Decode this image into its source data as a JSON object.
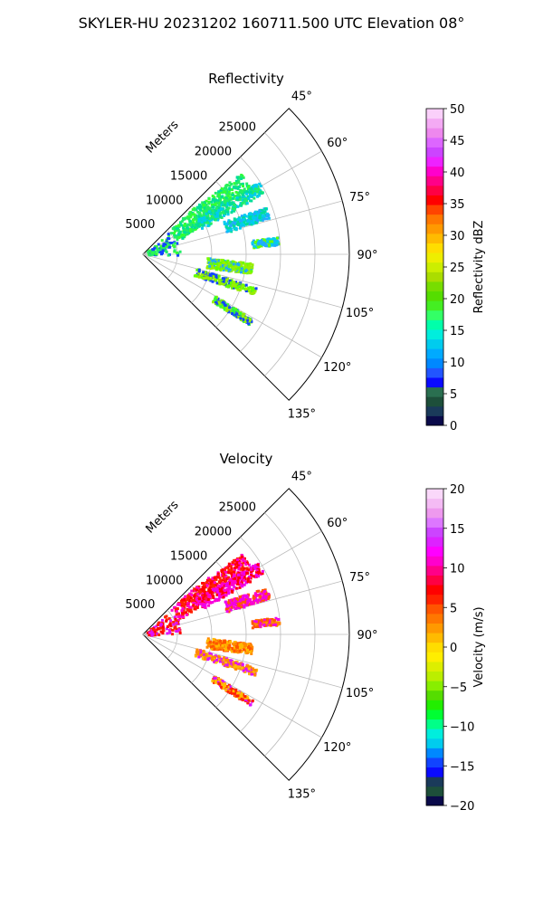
{
  "title": "SKYLER-HU  20231202  160711.500 UTC Elevation 08°",
  "chart_data": [
    {
      "type": "polar-sector",
      "title": "Reflectivity",
      "radial_label": "Meters",
      "azimuth_range_deg": [
        45,
        135
      ],
      "azimuth_ticks": [
        "45°",
        "60°",
        "75°",
        "90°",
        "105°",
        "120°",
        "135°"
      ],
      "range_max_m": 27000,
      "range_ticks": [
        "5000",
        "10000",
        "15000",
        "20000",
        "25000"
      ],
      "colorbar": {
        "label": "Reflectivity dBZ",
        "range": [
          0,
          50
        ],
        "ticks": [
          "0",
          "5",
          "10",
          "15",
          "20",
          "25",
          "30",
          "35",
          "40",
          "45",
          "50"
        ],
        "colors": [
          "#0a0a4a",
          "#1a3a5a",
          "#1d4f3a",
          "#2a6f50",
          "#0a0aff",
          "#2255ff",
          "#0088ff",
          "#00aaff",
          "#00ccee",
          "#00eedd",
          "#00ffaa",
          "#33ff66",
          "#44ee22",
          "#55dd00",
          "#77dd00",
          "#aadd00",
          "#ccee00",
          "#eeee00",
          "#ffdd00",
          "#ffbb00",
          "#ff9900",
          "#ff7700",
          "#ff4400",
          "#ff0000",
          "#ff0044",
          "#ff0088",
          "#ff00cc",
          "#ee22ff",
          "#cc44ff",
          "#dd66ff",
          "#ee88ee",
          "#f4aaf4",
          "#fad0fa"
        ]
      },
      "echo_colors": [
        "#33ff33",
        "#22ee66",
        "#00dd99",
        "#00ccee",
        "#22aaff",
        "#66ff00",
        "#99ee00",
        "#1144ff"
      ]
    },
    {
      "type": "polar-sector",
      "title": "Velocity",
      "radial_label": "Meters",
      "azimuth_range_deg": [
        45,
        135
      ],
      "azimuth_ticks": [
        "45°",
        "60°",
        "75°",
        "90°",
        "105°",
        "120°",
        "135°"
      ],
      "range_max_m": 27000,
      "range_ticks": [
        "5000",
        "10000",
        "15000",
        "20000",
        "25000"
      ],
      "colorbar": {
        "label": "Velocity (m/s)",
        "range": [
          -20,
          20
        ],
        "ticks": [
          "−20",
          "−15",
          "−10",
          "−5",
          "0",
          "5",
          "10",
          "15",
          "20"
        ],
        "colors": [
          "#0a0a4a",
          "#1d4f3a",
          "#1a3a5a",
          "#0a0aff",
          "#1144ff",
          "#0088ff",
          "#00ccee",
          "#00eedd",
          "#00ff88",
          "#00ff33",
          "#22ee00",
          "#55dd00",
          "#88ee00",
          "#bbee00",
          "#ddee00",
          "#ffee00",
          "#ffdd00",
          "#ffbb00",
          "#ff9900",
          "#ff7700",
          "#ff5500",
          "#ff2200",
          "#ff0000",
          "#ff0044",
          "#ff0088",
          "#ff00cc",
          "#ff00ff",
          "#dd22ff",
          "#cc44ff",
          "#dd77ff",
          "#ee99ee",
          "#f4bbf4",
          "#fad8fa"
        ]
      },
      "echo_colors": [
        "#ff2200",
        "#ff0000",
        "#ff00cc",
        "#ee00ee",
        "#ff5500",
        "#ff8800",
        "#ffbb00",
        "#dd11ff"
      ]
    }
  ]
}
